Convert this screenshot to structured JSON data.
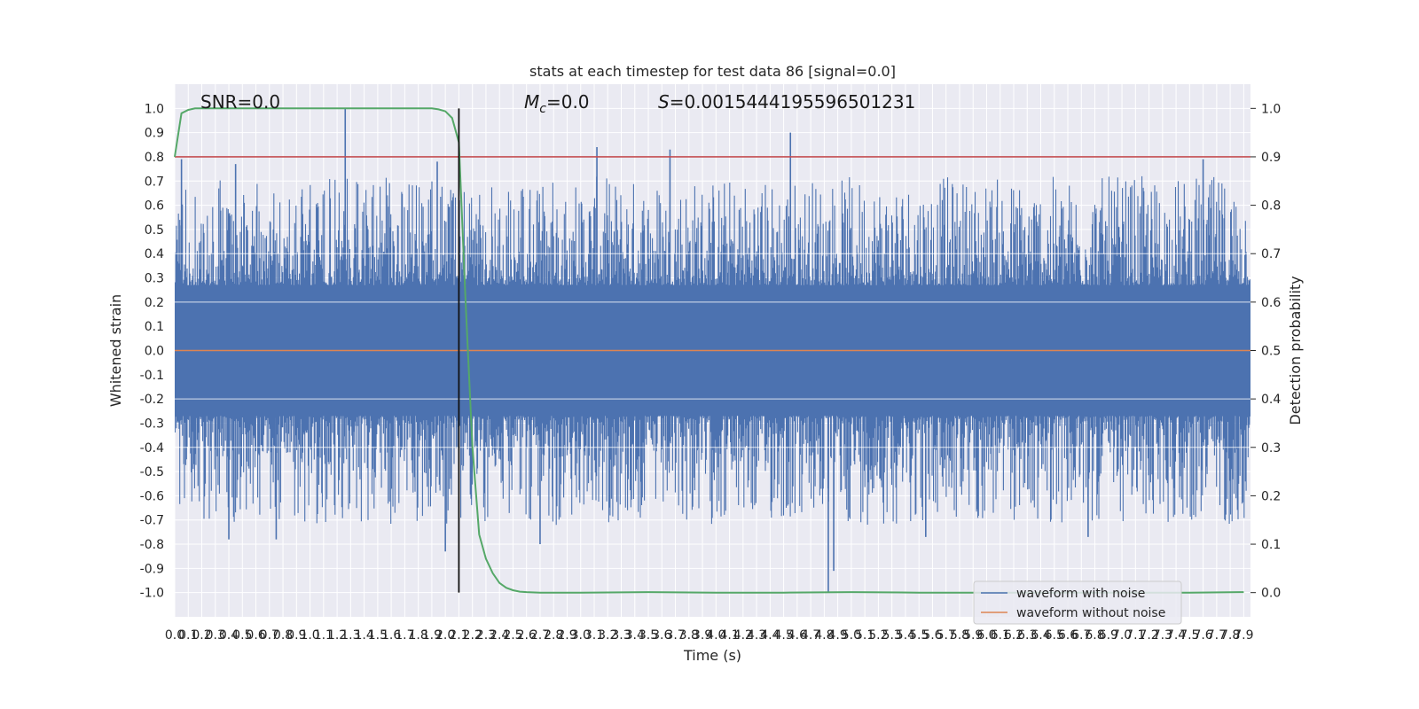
{
  "chart_data": {
    "type": "line",
    "title": "stats at each timestep for test data 86 [signal=0.0]",
    "xlabel": "Time (s)",
    "ylabel_left": "Whitened strain",
    "ylabel_right": "Detection probability",
    "xlim": [
      0.0,
      7.95
    ],
    "ylim_left": [
      -1.1,
      1.1
    ],
    "ylim_right": [
      -0.05,
      1.05
    ],
    "x_ticks": [
      "0.0",
      "0.1",
      "0.2",
      "0.3",
      "0.4",
      "0.5",
      "0.6",
      "0.7",
      "0.8",
      "0.9",
      "1.0",
      "1.1",
      "1.2",
      "1.3",
      "1.4",
      "1.5",
      "1.6",
      "1.7",
      "1.8",
      "1.9",
      "2.0",
      "2.1",
      "2.2",
      "2.3",
      "2.4",
      "2.5",
      "2.6",
      "2.7",
      "2.8",
      "2.9",
      "3.0",
      "3.1",
      "3.2",
      "3.3",
      "3.4",
      "3.5",
      "3.6",
      "3.7",
      "3.8",
      "3.9",
      "4.0",
      "4.1",
      "4.2",
      "4.3",
      "4.4",
      "4.5",
      "4.6",
      "4.7",
      "4.8",
      "4.9",
      "5.0",
      "5.1",
      "5.2",
      "5.3",
      "5.4",
      "5.5",
      "5.6",
      "5.7",
      "5.8",
      "5.9",
      "6.0",
      "6.1",
      "6.2",
      "6.3",
      "6.4",
      "6.5",
      "6.6",
      "6.7",
      "6.8",
      "6.9",
      "7.0",
      "7.1",
      "7.2",
      "7.3",
      "7.4",
      "7.5",
      "7.6",
      "7.7",
      "7.8",
      "7.9"
    ],
    "y_ticks_left": [
      "1.0",
      "0.9",
      "0.8",
      "0.7",
      "0.6",
      "0.5",
      "0.4",
      "0.3",
      "0.2",
      "0.1",
      "0.0",
      "-0.1",
      "-0.2",
      "-0.3",
      "-0.4",
      "-0.5",
      "-0.6",
      "-0.7",
      "-0.8",
      "-0.9",
      "-1.0"
    ],
    "y_ticks_right": [
      "1.0",
      "0.9",
      "0.8",
      "0.7",
      "0.6",
      "0.5",
      "0.4",
      "0.3",
      "0.2",
      "0.1",
      "0.0"
    ],
    "annotations": {
      "snr": "SNR=0.0",
      "mc_symbol": "M",
      "mc_sub": "c",
      "mc_value": "=0.0",
      "s_symbol": "S",
      "s_value": "=0.0015444195596501231"
    },
    "threshold": {
      "value": 0.9,
      "axis": "right",
      "color": "#c44e52"
    },
    "marker_time": 2.1,
    "series": [
      {
        "name": "waveform with noise",
        "color": "#4c72b0",
        "axis": "left",
        "spikes": [
          [
            1.26,
            1.0
          ],
          [
            3.12,
            0.84
          ],
          [
            3.66,
            0.83
          ],
          [
            4.55,
            0.9
          ],
          [
            1.94,
            0.78
          ],
          [
            0.05,
            0.79
          ],
          [
            0.45,
            0.77
          ],
          [
            7.6,
            0.79
          ],
          [
            4.83,
            -1.0
          ],
          [
            4.87,
            -0.91
          ],
          [
            2.0,
            -0.83
          ],
          [
            0.4,
            -0.78
          ],
          [
            0.75,
            -0.78
          ],
          [
            2.7,
            -0.8
          ],
          [
            5.55,
            -0.77
          ],
          [
            6.75,
            -0.77
          ]
        ]
      },
      {
        "name": "waveform without noise",
        "color": "#dd8452",
        "axis": "left",
        "value": 0.0
      },
      {
        "name": "detection probability",
        "color": "#55a868",
        "axis": "right",
        "x": [
          0.0,
          0.05,
          0.1,
          0.15,
          0.2,
          1.8,
          1.9,
          1.95,
          2.0,
          2.05,
          2.1,
          2.15,
          2.2,
          2.25,
          2.3,
          2.35,
          2.4,
          2.45,
          2.5,
          2.55,
          2.6,
          2.7,
          3.0,
          3.5,
          4.0,
          4.5,
          5.0,
          5.5,
          6.0,
          6.5,
          7.0,
          7.5,
          7.9
        ],
        "y": [
          0.9,
          0.99,
          0.997,
          1.0,
          1.0,
          1.0,
          1.0,
          0.998,
          0.994,
          0.98,
          0.93,
          0.6,
          0.3,
          0.12,
          0.07,
          0.04,
          0.02,
          0.01,
          0.005,
          0.002,
          0.001,
          0.0,
          0.0,
          0.001,
          0.0,
          0.0,
          0.001,
          0.0,
          0.0,
          0.0,
          0.0,
          0.0,
          0.001
        ]
      }
    ],
    "legend": [
      "waveform with noise",
      "waveform without noise"
    ],
    "legend_position": "bottom-right"
  }
}
